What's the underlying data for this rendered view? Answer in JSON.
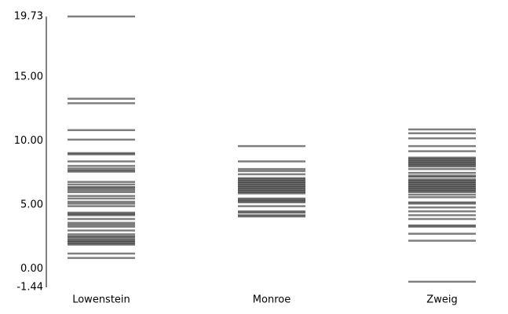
{
  "chart_data": {
    "type": "strip",
    "title": "",
    "xlabel": "",
    "ylabel": "",
    "ylim": [
      -1.44,
      19.73
    ],
    "yticks": [
      {
        "value": 19.73,
        "label": "19.73"
      },
      {
        "value": 15.0,
        "label": "15.00"
      },
      {
        "value": 10.0,
        "label": "10.00"
      },
      {
        "value": 5.0,
        "label": "5.00"
      },
      {
        "value": 0.0,
        "label": "0.00"
      },
      {
        "value": -1.44,
        "label": "-1.44"
      }
    ],
    "categories": [
      "Lowenstein",
      "Monroe",
      "Zweig"
    ],
    "series": [
      {
        "category": "Lowenstein",
        "values": [
          19.73,
          13.3,
          12.95,
          10.85,
          10.1,
          9.05,
          8.95,
          8.4,
          8.05,
          7.85,
          7.7,
          7.6,
          6.8,
          6.6,
          6.4,
          6.3,
          6.15,
          6.0,
          5.7,
          5.5,
          5.25,
          5.1,
          4.9,
          4.4,
          4.3,
          4.2,
          3.9,
          3.6,
          3.45,
          3.3,
          3.0,
          2.7,
          2.55,
          2.45,
          2.3,
          2.2,
          2.1,
          2.0,
          1.9,
          1.2,
          0.85
        ]
      },
      {
        "category": "Monroe",
        "values": [
          9.6,
          8.4,
          7.8,
          7.65,
          7.4,
          7.1,
          7.0,
          6.9,
          6.8,
          6.7,
          6.6,
          6.5,
          6.4,
          6.3,
          6.2,
          6.1,
          6.0,
          5.9,
          5.5,
          5.4,
          5.3,
          5.2,
          4.9,
          4.5,
          4.4,
          4.2,
          4.1
        ]
      },
      {
        "category": "Zweig",
        "values": [
          10.9,
          10.6,
          10.2,
          9.6,
          9.2,
          8.7,
          8.6,
          8.5,
          8.4,
          8.3,
          8.2,
          8.1,
          8.0,
          7.8,
          7.5,
          7.3,
          7.2,
          7.0,
          6.9,
          6.8,
          6.7,
          6.6,
          6.5,
          6.4,
          6.3,
          6.2,
          6.1,
          6.0,
          5.8,
          5.6,
          5.2,
          5.1,
          4.8,
          4.5,
          4.2,
          3.9,
          3.4,
          3.3,
          2.75,
          2.2,
          -1.0
        ]
      }
    ],
    "mark_color": "#000000",
    "mark_opacity": 0.5
  }
}
